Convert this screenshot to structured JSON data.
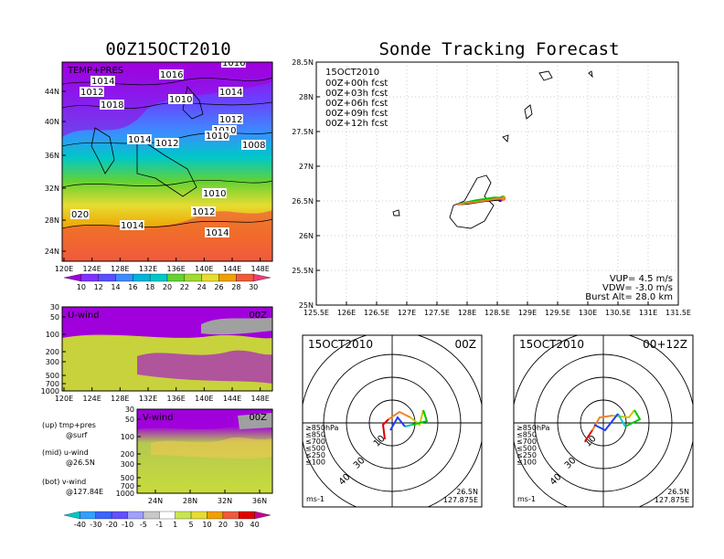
{
  "left_title": "00Z15OCT2010",
  "right_title": "Sonde Tracking Forecast",
  "map_panel": {
    "label": "TEMP+PRES",
    "lat_ticks": [
      "44N",
      "40N",
      "36N",
      "32N",
      "28N",
      "24N"
    ],
    "lon_ticks": [
      "120E",
      "124E",
      "128E",
      "132E",
      "136E",
      "140E",
      "144E",
      "148E"
    ],
    "isobars": [
      "1016",
      "1014",
      "1012",
      "1016",
      "1018",
      "1014",
      "1010",
      "1012",
      "1014",
      "1012",
      "1010",
      "1010",
      "1008",
      "1010",
      "1012",
      "020",
      "1014",
      "1014"
    ],
    "colorbar": [
      "10",
      "12",
      "14",
      "16",
      "18",
      "20",
      "22",
      "24",
      "26",
      "28",
      "30"
    ]
  },
  "uwind_panel": {
    "label": "U-wind",
    "time": "00Z",
    "p_ticks": [
      "30",
      "50",
      "100",
      "200",
      "300",
      "500",
      "700",
      "1000"
    ],
    "lon_ticks": [
      "120E",
      "124E",
      "128E",
      "132E",
      "136E",
      "140E",
      "144E",
      "148E"
    ]
  },
  "vwind_panel": {
    "label": "V-wind",
    "time": "00Z",
    "p_ticks": [
      "30",
      "50",
      "100",
      "200",
      "300",
      "500",
      "700",
      "1000"
    ],
    "lat_ticks": [
      "24N",
      "28N",
      "32N",
      "36N"
    ],
    "colorbar": [
      "-40",
      "-30",
      "-20",
      "-10",
      "-5",
      "-1",
      "1",
      "5",
      "10",
      "20",
      "30",
      "40"
    ]
  },
  "side_notes": [
    {
      "a": "(up) tmp+pres",
      "b": "@surf"
    },
    {
      "a": "(mid) u-wind",
      "b": "@26.5N"
    },
    {
      "a": "(bot) v-wind",
      "b": "@127.84E"
    }
  ],
  "track": {
    "date": "15OCT2010",
    "legend": [
      {
        "label": "00Z+00h  fcst",
        "color": "#000000"
      },
      {
        "label": "00Z+03h  fcst",
        "color": "#a000c8"
      },
      {
        "label": "00Z+06h  fcst",
        "color": "#1e3cff"
      },
      {
        "label": "00Z+09h  fcst",
        "color": "#00c800"
      },
      {
        "label": "00Z+12h  fcst",
        "color": "#f08228"
      }
    ],
    "lat_ticks": [
      "28.5N",
      "28N",
      "27.5N",
      "27N",
      "26.5N",
      "26N",
      "25.5N",
      "25N"
    ],
    "lon_ticks": [
      "125.5E",
      "126E",
      "126.5E",
      "127E",
      "127.5E",
      "128E",
      "128.5E",
      "129E",
      "129.5E",
      "130E",
      "130.5E",
      "131E",
      "131.5E"
    ],
    "vup": "VUP= 4.5 m/s",
    "vdw": "VDW= -3.0 m/s",
    "burst": "Burst Alt= 28.0 km"
  },
  "hodo_left": {
    "date": "15OCT2010",
    "time": "00Z",
    "units": "ms-1",
    "lat": "26.5N",
    "lon": "127.875E",
    "rings": [
      "10",
      "30",
      "40"
    ]
  },
  "hodo_right": {
    "date": "15OCT2010",
    "time": "00+12Z",
    "units": "ms-1",
    "lat": "26.5N",
    "lon": "127.875E",
    "rings": [
      "10",
      "30",
      "40"
    ]
  },
  "hodo_legend": [
    {
      "label": "≥850hPa",
      "color": "#e00000"
    },
    {
      "label": "≤850",
      "color": "#f08228"
    },
    {
      "label": "≤700",
      "color": "#c8c800"
    },
    {
      "label": "≤500",
      "color": "#00c800"
    },
    {
      "label": "≤250",
      "color": "#00c8c8"
    },
    {
      "label": "≤100",
      "color": "#1e3cff"
    }
  ],
  "colors": {
    "purple": "#a000dc",
    "blue": "#3c64ff",
    "cyan": "#00c8c8",
    "green": "#00d200",
    "yellow": "#e6dc32",
    "orange": "#f0a000",
    "red": "#f03c3c"
  }
}
